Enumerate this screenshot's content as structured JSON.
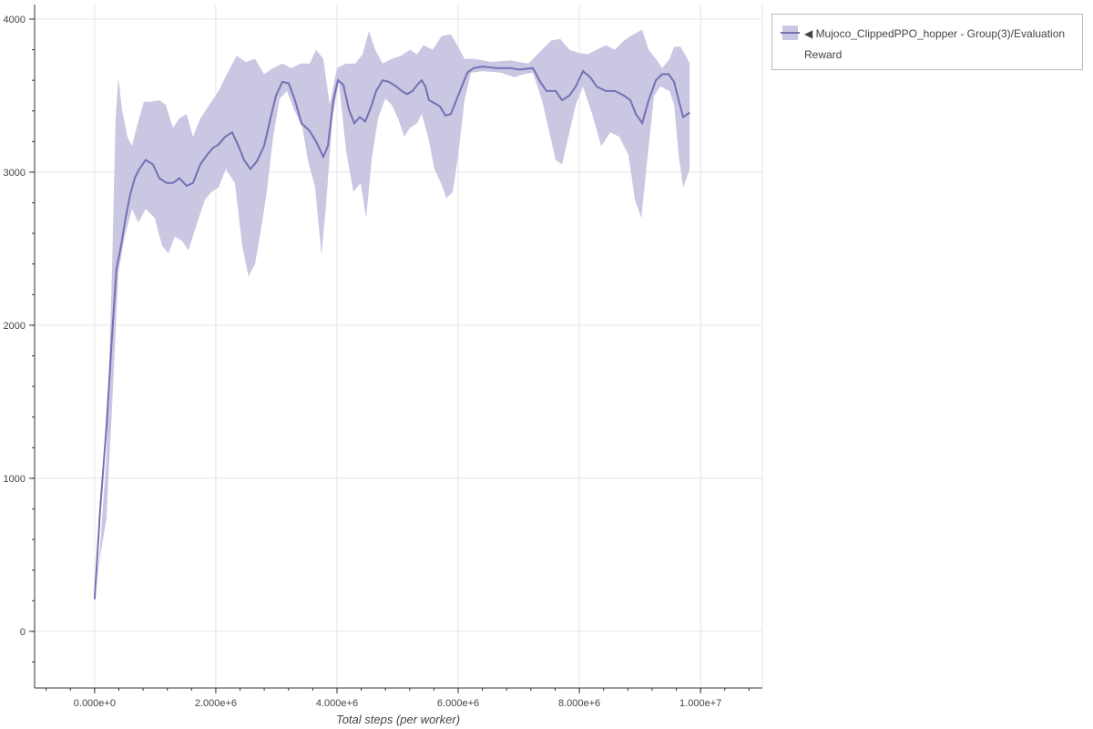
{
  "chart_data": {
    "type": "line",
    "title": "",
    "xlabel": "Total steps (per worker)",
    "ylabel": "",
    "xlim": [
      -990000,
      11020000
    ],
    "ylim": [
      -370,
      4095
    ],
    "grid": true,
    "legend_placement": "outside-top-right",
    "x_ticks": [
      0,
      2000000,
      4000000,
      6000000,
      8000000,
      10000000
    ],
    "x_tick_labels": [
      "0.000e+0",
      "2.000e+6",
      "4.000e+6",
      "6.000e+6",
      "8.000e+6",
      "1.000e+7"
    ],
    "y_ticks": [
      0,
      1000,
      2000,
      3000,
      4000
    ],
    "y_tick_labels": [
      "0",
      "1000",
      "2000",
      "3000",
      "4000"
    ],
    "x_minor_step": 400000,
    "y_minor_step": 200,
    "colors": {
      "line": "#7570b3",
      "band": "#c9c7e2"
    },
    "series": [
      {
        "name": "◀ Mujoco_ClippedPPO_hopper - Group(3)/Evaluation Reward",
        "mean": [
          [
            0,
            210
          ],
          [
            90000,
            790
          ],
          [
            195000,
            1330
          ],
          [
            286000,
            1920
          ],
          [
            361000,
            2370
          ],
          [
            436000,
            2520
          ],
          [
            511000,
            2700
          ],
          [
            586000,
            2850
          ],
          [
            662000,
            2960
          ],
          [
            737000,
            3020
          ],
          [
            842000,
            3080
          ],
          [
            962000,
            3050
          ],
          [
            1068000,
            2960
          ],
          [
            1188000,
            2930
          ],
          [
            1293000,
            2930
          ],
          [
            1398000,
            2960
          ],
          [
            1519000,
            2910
          ],
          [
            1624000,
            2930
          ],
          [
            1744000,
            3050
          ],
          [
            1850000,
            3110
          ],
          [
            1955000,
            3160
          ],
          [
            2045000,
            3180
          ],
          [
            2150000,
            3230
          ],
          [
            2271000,
            3260
          ],
          [
            2376000,
            3170
          ],
          [
            2466000,
            3080
          ],
          [
            2571000,
            3020
          ],
          [
            2677000,
            3070
          ],
          [
            2797000,
            3170
          ],
          [
            2902000,
            3350
          ],
          [
            2993000,
            3500
          ],
          [
            3098000,
            3590
          ],
          [
            3203000,
            3580
          ],
          [
            3308000,
            3470
          ],
          [
            3414000,
            3320
          ],
          [
            3549000,
            3270
          ],
          [
            3654000,
            3200
          ],
          [
            3774000,
            3100
          ],
          [
            3850000,
            3170
          ],
          [
            3940000,
            3470
          ],
          [
            4015000,
            3600
          ],
          [
            4105000,
            3570
          ],
          [
            4196000,
            3410
          ],
          [
            4286000,
            3320
          ],
          [
            4376000,
            3360
          ],
          [
            4466000,
            3330
          ],
          [
            4556000,
            3420
          ],
          [
            4647000,
            3530
          ],
          [
            4752000,
            3600
          ],
          [
            4857000,
            3590
          ],
          [
            4978000,
            3560
          ],
          [
            5068000,
            3530
          ],
          [
            5158000,
            3510
          ],
          [
            5248000,
            3530
          ],
          [
            5323000,
            3570
          ],
          [
            5398000,
            3600
          ],
          [
            5459000,
            3560
          ],
          [
            5519000,
            3470
          ],
          [
            5609000,
            3450
          ],
          [
            5699000,
            3430
          ],
          [
            5790000,
            3370
          ],
          [
            5880000,
            3380
          ],
          [
            5970000,
            3470
          ],
          [
            6060000,
            3560
          ],
          [
            6151000,
            3650
          ],
          [
            6256000,
            3680
          ],
          [
            6406000,
            3690
          ],
          [
            6632000,
            3680
          ],
          [
            6857000,
            3680
          ],
          [
            7008000,
            3670
          ],
          [
            7233000,
            3680
          ],
          [
            7354000,
            3590
          ],
          [
            7459000,
            3530
          ],
          [
            7609000,
            3530
          ],
          [
            7714000,
            3470
          ],
          [
            7835000,
            3500
          ],
          [
            7940000,
            3560
          ],
          [
            8060000,
            3660
          ],
          [
            8180000,
            3620
          ],
          [
            8286000,
            3560
          ],
          [
            8436000,
            3530
          ],
          [
            8586000,
            3530
          ],
          [
            8737000,
            3500
          ],
          [
            8842000,
            3470
          ],
          [
            8932000,
            3380
          ],
          [
            9038000,
            3320
          ],
          [
            9143000,
            3470
          ],
          [
            9263000,
            3600
          ],
          [
            9368000,
            3640
          ],
          [
            9474000,
            3640
          ],
          [
            9564000,
            3590
          ],
          [
            9639000,
            3470
          ],
          [
            9714000,
            3360
          ],
          [
            9820000,
            3390
          ]
        ],
        "upper": [
          [
            0,
            210
          ],
          [
            90000,
            550
          ],
          [
            195000,
            1150
          ],
          [
            286000,
            2340
          ],
          [
            346000,
            3350
          ],
          [
            391000,
            3620
          ],
          [
            451000,
            3410
          ],
          [
            541000,
            3230
          ],
          [
            617000,
            3170
          ],
          [
            692000,
            3290
          ],
          [
            812000,
            3460
          ],
          [
            917000,
            3460
          ],
          [
            1068000,
            3470
          ],
          [
            1173000,
            3440
          ],
          [
            1293000,
            3290
          ],
          [
            1398000,
            3350
          ],
          [
            1519000,
            3380
          ],
          [
            1624000,
            3230
          ],
          [
            1744000,
            3350
          ],
          [
            1895000,
            3440
          ],
          [
            2045000,
            3530
          ],
          [
            2195000,
            3650
          ],
          [
            2346000,
            3760
          ],
          [
            2496000,
            3720
          ],
          [
            2647000,
            3740
          ],
          [
            2797000,
            3640
          ],
          [
            2947000,
            3680
          ],
          [
            3098000,
            3710
          ],
          [
            3248000,
            3680
          ],
          [
            3399000,
            3710
          ],
          [
            3549000,
            3710
          ],
          [
            3654000,
            3800
          ],
          [
            3774000,
            3740
          ],
          [
            3880000,
            3440
          ],
          [
            4000000,
            3680
          ],
          [
            4150000,
            3710
          ],
          [
            4301000,
            3710
          ],
          [
            4421000,
            3770
          ],
          [
            4526000,
            3920
          ],
          [
            4632000,
            3800
          ],
          [
            4752000,
            3710
          ],
          [
            4902000,
            3740
          ],
          [
            5053000,
            3760
          ],
          [
            5203000,
            3800
          ],
          [
            5323000,
            3770
          ],
          [
            5429000,
            3830
          ],
          [
            5579000,
            3800
          ],
          [
            5729000,
            3890
          ],
          [
            5880000,
            3900
          ],
          [
            5985000,
            3830
          ],
          [
            6105000,
            3740
          ],
          [
            6256000,
            3740
          ],
          [
            6557000,
            3720
          ],
          [
            6857000,
            3730
          ],
          [
            7158000,
            3710
          ],
          [
            7383000,
            3800
          ],
          [
            7534000,
            3860
          ],
          [
            7684000,
            3870
          ],
          [
            7835000,
            3800
          ],
          [
            7985000,
            3780
          ],
          [
            8135000,
            3770
          ],
          [
            8286000,
            3800
          ],
          [
            8436000,
            3830
          ],
          [
            8586000,
            3800
          ],
          [
            8737000,
            3860
          ],
          [
            8887000,
            3900
          ],
          [
            9038000,
            3930
          ],
          [
            9143000,
            3800
          ],
          [
            9263000,
            3740
          ],
          [
            9368000,
            3680
          ],
          [
            9489000,
            3740
          ],
          [
            9564000,
            3820
          ],
          [
            9669000,
            3820
          ],
          [
            9744000,
            3770
          ],
          [
            9820000,
            3710
          ]
        ],
        "lower": [
          [
            0,
            210
          ],
          [
            90000,
            490
          ],
          [
            195000,
            730
          ],
          [
            286000,
            1450
          ],
          [
            391000,
            2340
          ],
          [
            496000,
            2580
          ],
          [
            617000,
            2760
          ],
          [
            722000,
            2670
          ],
          [
            842000,
            2760
          ],
          [
            992000,
            2700
          ],
          [
            1113000,
            2520
          ],
          [
            1218000,
            2470
          ],
          [
            1323000,
            2580
          ],
          [
            1444000,
            2550
          ],
          [
            1549000,
            2490
          ],
          [
            1669000,
            2640
          ],
          [
            1820000,
            2820
          ],
          [
            1925000,
            2870
          ],
          [
            2045000,
            2900
          ],
          [
            2165000,
            3020
          ],
          [
            2316000,
            2930
          ],
          [
            2436000,
            2520
          ],
          [
            2541000,
            2320
          ],
          [
            2647000,
            2400
          ],
          [
            2752000,
            2640
          ],
          [
            2842000,
            2870
          ],
          [
            2947000,
            3230
          ],
          [
            3053000,
            3480
          ],
          [
            3173000,
            3530
          ],
          [
            3293000,
            3410
          ],
          [
            3429000,
            3290
          ],
          [
            3519000,
            3080
          ],
          [
            3639000,
            2900
          ],
          [
            3744000,
            2460
          ],
          [
            3820000,
            2790
          ],
          [
            3925000,
            3350
          ],
          [
            4030000,
            3590
          ],
          [
            4150000,
            3140
          ],
          [
            4271000,
            2870
          ],
          [
            4391000,
            2930
          ],
          [
            4481000,
            2700
          ],
          [
            4571000,
            3080
          ],
          [
            4677000,
            3350
          ],
          [
            4797000,
            3480
          ],
          [
            4902000,
            3440
          ],
          [
            5008000,
            3350
          ],
          [
            5113000,
            3230
          ],
          [
            5203000,
            3290
          ],
          [
            5323000,
            3320
          ],
          [
            5398000,
            3380
          ],
          [
            5504000,
            3230
          ],
          [
            5609000,
            3020
          ],
          [
            5714000,
            2930
          ],
          [
            5805000,
            2830
          ],
          [
            5910000,
            2870
          ],
          [
            6000000,
            3110
          ],
          [
            6105000,
            3470
          ],
          [
            6211000,
            3650
          ],
          [
            6406000,
            3660
          ],
          [
            6707000,
            3650
          ],
          [
            6932000,
            3620
          ],
          [
            7083000,
            3640
          ],
          [
            7233000,
            3650
          ],
          [
            7383000,
            3470
          ],
          [
            7504000,
            3260
          ],
          [
            7609000,
            3080
          ],
          [
            7714000,
            3050
          ],
          [
            7835000,
            3260
          ],
          [
            7940000,
            3440
          ],
          [
            8060000,
            3560
          ],
          [
            8211000,
            3380
          ],
          [
            8361000,
            3170
          ],
          [
            8511000,
            3260
          ],
          [
            8662000,
            3230
          ],
          [
            8812000,
            3110
          ],
          [
            8917000,
            2820
          ],
          [
            9023000,
            2700
          ],
          [
            9113000,
            3050
          ],
          [
            9233000,
            3500
          ],
          [
            9338000,
            3560
          ],
          [
            9489000,
            3530
          ],
          [
            9564000,
            3440
          ],
          [
            9639000,
            3110
          ],
          [
            9714000,
            2900
          ],
          [
            9820000,
            3020
          ]
        ]
      }
    ]
  }
}
